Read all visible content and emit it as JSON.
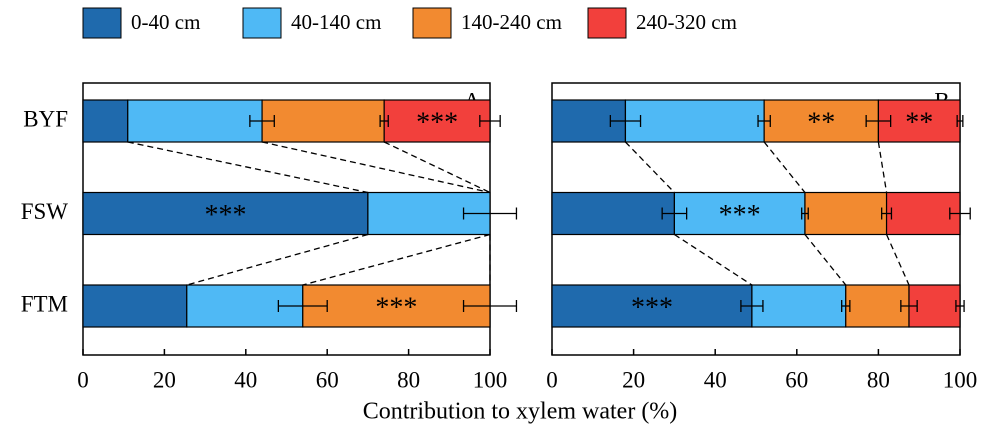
{
  "chart_data": [
    {
      "type": "bar",
      "orientation": "horizontal",
      "stacked": true,
      "panel_label": "A",
      "categories": [
        "BYF",
        "FSW",
        "FTM"
      ],
      "series": [
        {
          "name": "0-40 cm",
          "color": "#1f6aad",
          "values": [
            11,
            70,
            25.5
          ],
          "errors": [
            null,
            null,
            null
          ]
        },
        {
          "name": "40-140 cm",
          "color": "#4fb9f5",
          "values": [
            33,
            30,
            28.5
          ],
          "errors": [
            3,
            6.5,
            6
          ]
        },
        {
          "name": "140-240 cm",
          "color": "#f28a30",
          "values": [
            30,
            0,
            46
          ],
          "errors": [
            1,
            null,
            6.5
          ]
        },
        {
          "name": "240-320 cm",
          "color": "#f2403c",
          "values": [
            26,
            0,
            0
          ],
          "errors": [
            2.5,
            null,
            null
          ]
        }
      ],
      "annotations": [
        {
          "series": 3,
          "category": 0,
          "text": "***"
        },
        {
          "series": 0,
          "category": 1,
          "text": "***"
        },
        {
          "series": 2,
          "category": 2,
          "text": "***"
        }
      ],
      "xlim": [
        0,
        100
      ],
      "xticks": [
        0,
        20,
        40,
        60,
        80,
        100
      ]
    },
    {
      "type": "bar",
      "orientation": "horizontal",
      "stacked": true,
      "panel_label": "B",
      "series": [
        {
          "values": [
            18,
            30,
            49
          ],
          "errors": [
            3.7,
            3,
            2.7
          ]
        },
        {
          "values": [
            34,
            32,
            23
          ],
          "errors": [
            1.5,
            0.8,
            1
          ]
        },
        {
          "values": [
            28,
            20,
            15.5
          ],
          "errors": [
            3,
            1.2,
            2
          ]
        },
        {
          "values": [
            20,
            18,
            12.5
          ],
          "errors": [
            0.7,
            2.5,
            1
          ]
        }
      ],
      "annotations": [
        {
          "series": 2,
          "category": 0,
          "text": "**"
        },
        {
          "series": 3,
          "category": 0,
          "text": "**"
        },
        {
          "series": 1,
          "category": 1,
          "text": "***"
        },
        {
          "series": 0,
          "category": 2,
          "text": "***"
        }
      ],
      "xlim": [
        0,
        100
      ],
      "xticks": [
        0,
        20,
        40,
        60,
        80,
        100
      ]
    }
  ],
  "xlabel": "Contribution to xylem water (%)"
}
